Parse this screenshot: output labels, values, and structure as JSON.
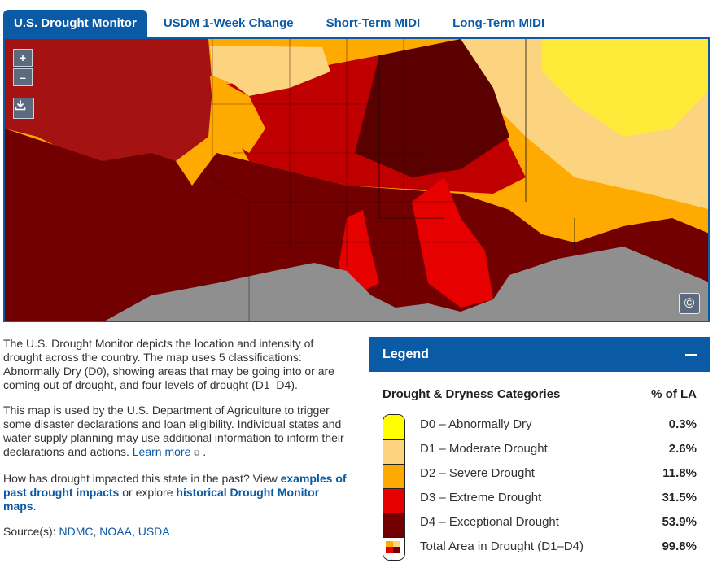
{
  "tabs": [
    {
      "label": "U.S. Drought Monitor",
      "active": true
    },
    {
      "label": "USDM 1-Week Change",
      "active": false
    },
    {
      "label": "Short-Term MIDI",
      "active": false
    },
    {
      "label": "Long-Term MIDI",
      "active": false
    }
  ],
  "map": {
    "zoom_in": "+",
    "zoom_out": "–",
    "download_icon": "download-icon",
    "copyright_icon": "copyright-icon",
    "colors": {
      "D0": "#ffff00",
      "D1": "#fcd37f",
      "D2": "#ffaa00",
      "D3": "#e60000",
      "D4": "#730000",
      "no_drought": "#8f8f8f"
    }
  },
  "description": {
    "p1": "The U.S. Drought Monitor depicts the location and intensity of drought across the country. The map uses 5 classifications: Abnormally Dry (D0), showing areas that may be going into or are coming out of drought, and four levels of drought (D1–D4).",
    "p2": "This map is used by the U.S. Department of Agriculture to trigger some disaster declarations and loan eligibility. Individual states and water supply planning may use additional information to inform their declarations and actions.",
    "learn_more": "Learn more",
    "p2_end": ".",
    "p3_start": "How has drought impacted this state in the past? View ",
    "link_impacts": "examples of past drought impacts",
    "p3_mid": " or explore ",
    "link_maps": "historical Drought Monitor maps",
    "p3_end": ".",
    "sources_label": "Source(s): ",
    "sources": [
      "NDMC",
      "NOAA",
      "USDA"
    ]
  },
  "legend": {
    "title": "Legend",
    "col_categories": "Drought & Dryness Categories",
    "col_percent": "% of LA",
    "rows": [
      {
        "label": "D0 – Abnormally Dry",
        "percent": "0.3%",
        "color": "#ffff00"
      },
      {
        "label": "D1 – Moderate Drought",
        "percent": "2.6%",
        "color": "#fcd37f"
      },
      {
        "label": "D2 – Severe Drought",
        "percent": "11.8%",
        "color": "#ffaa00"
      },
      {
        "label": "D3 – Extreme Drought",
        "percent": "31.5%",
        "color": "#e60000"
      },
      {
        "label": "D4 – Exceptional Drought",
        "percent": "53.9%",
        "color": "#730000"
      },
      {
        "label": "Total Area in Drought (D1–D4)",
        "percent": "99.8%",
        "color": "multi"
      }
    ]
  }
}
